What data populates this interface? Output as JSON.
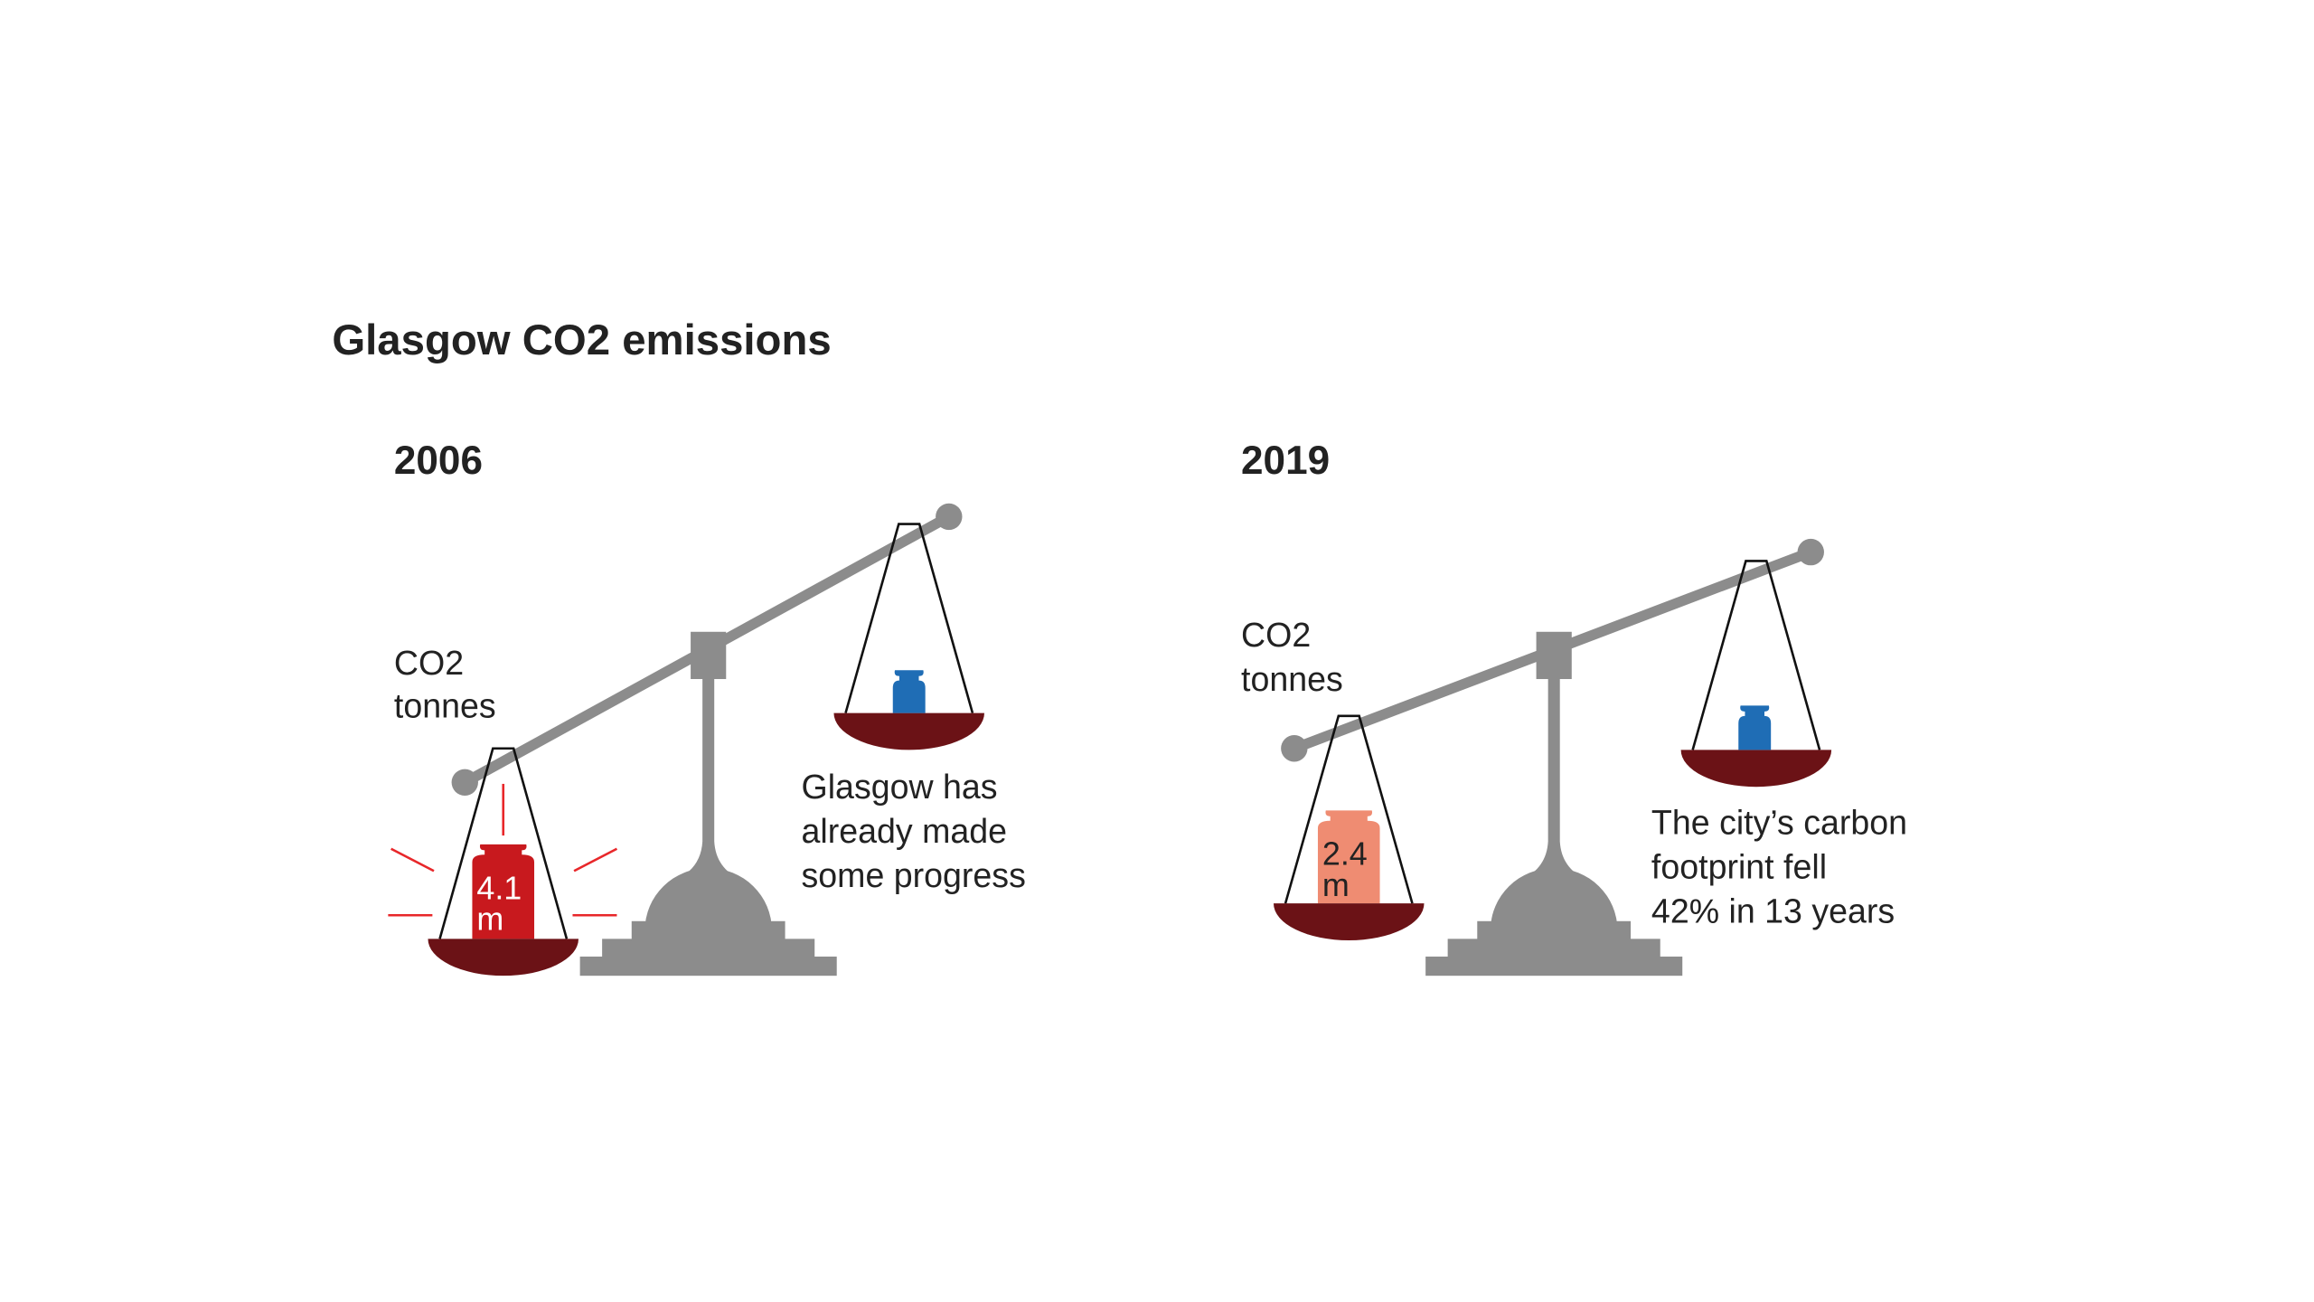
{
  "title": "Glasgow CO2 emissions",
  "panels": [
    {
      "year": "2006",
      "unit_label": [
        "CO2",
        "tonnes"
      ],
      "weight_label": [
        "4.1",
        "m"
      ],
      "caption": [
        "Glasgow has",
        "already made",
        "some progress"
      ]
    },
    {
      "year": "2019",
      "unit_label": [
        "CO2",
        "tonnes"
      ],
      "weight_label": [
        "2.4",
        "m"
      ],
      "caption": [
        "The city’s carbon",
        "footprint fell",
        "42% in 13 years"
      ]
    }
  ]
}
